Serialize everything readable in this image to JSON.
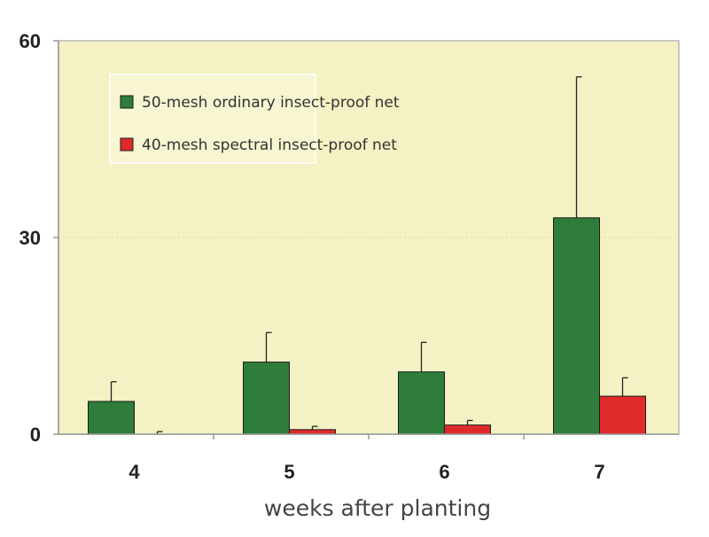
{
  "chart_data": {
    "type": "bar",
    "categories": [
      "4",
      "5",
      "6",
      "7"
    ],
    "series": [
      {
        "name": "50-mesh ordinary insect-proof net",
        "values": [
          5,
          11,
          9.5,
          33
        ],
        "errors": [
          3,
          4.5,
          4.5,
          21.5
        ],
        "color": "#2e7d3a"
      },
      {
        "name": "40-mesh spectral insect-proof net",
        "values": [
          0,
          0.7,
          1.4,
          5.8
        ],
        "errors": [
          0.4,
          0.5,
          0.7,
          2.8
        ],
        "color": "#e02a2a"
      }
    ],
    "xlabel": "weeks after planting",
    "ylabel": "",
    "ylim": [
      0,
      60
    ],
    "yticks": [
      "0",
      "30",
      "60"
    ],
    "grid": "dotted horizontal at 30",
    "legend": "top-left",
    "background": "#f4f2c4"
  }
}
